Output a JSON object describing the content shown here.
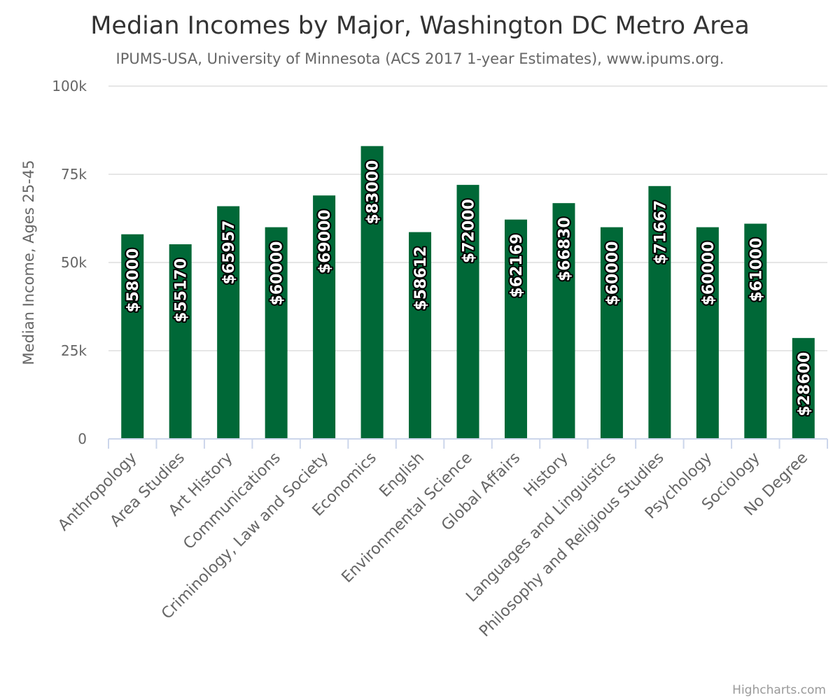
{
  "chart_data": {
    "type": "bar",
    "title": "Median Incomes by Major, Washington DC Metro Area",
    "subtitle": "IPUMS-USA, University of Minnesota (ACS 2017 1-year Estimates), www.ipums.org.",
    "xlabel": "",
    "ylabel": "Median Income, Ages 25-45",
    "ylim": [
      0,
      100000
    ],
    "yticks": [
      0,
      25000,
      50000,
      75000,
      100000
    ],
    "ytick_labels": [
      "0",
      "25k",
      "50k",
      "75k",
      "100k"
    ],
    "grid": true,
    "legend": "none",
    "categories": [
      "Anthropology",
      "Area Studies",
      "Art History",
      "Communications",
      "Criminology, Law and Society",
      "Economics",
      "English",
      "Environmental Science",
      "Global Affairs",
      "History",
      "Languages and Linguistics",
      "Philosophy and Religious Studies",
      "Psychology",
      "Sociology",
      "No Degree"
    ],
    "values": [
      58000,
      55170,
      65957,
      60000,
      69000,
      83000,
      58612,
      72000,
      62169,
      66830,
      60000,
      71667,
      60000,
      61000,
      28600
    ],
    "data_labels": [
      "$58000",
      "$55170",
      "$65957",
      "$60000",
      "$69000",
      "$83000",
      "$58612",
      "$72000",
      "$62169",
      "$66830",
      "$60000",
      "$71667",
      "$60000",
      "$61000",
      "$28600"
    ],
    "colors": {
      "bar": "#006837"
    },
    "credits": "Highcharts.com"
  }
}
